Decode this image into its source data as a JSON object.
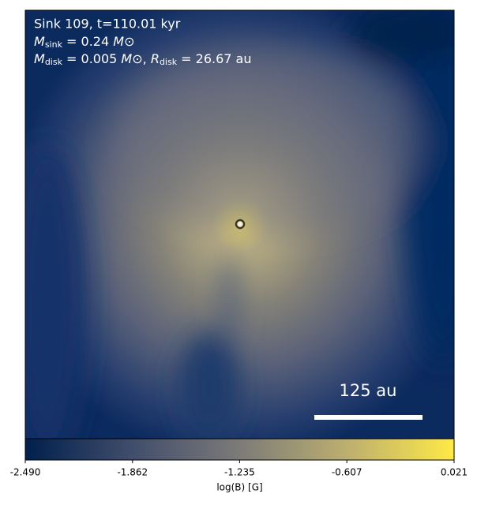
{
  "chart_data": {
    "type": "colormap",
    "annotations": {
      "line1": "Sink 109, t=110.01 kyr",
      "line2": [
        "M",
        "sink",
        " = 0.24 ",
        "M",
        "⊙"
      ],
      "line3": [
        "M",
        "disk",
        " = 0.005 ",
        "M",
        "⊙",
        ", ",
        "R",
        "disk",
        " = 26.67 au"
      ],
      "scale_bar": "125 au"
    },
    "colorbar": {
      "label": "log(B) [G]",
      "xlim": [
        -2.49,
        0.021
      ],
      "xticks": [
        {
          "value": -2.49,
          "label": "-2.490"
        },
        {
          "value": -1.862,
          "label": "-1.862"
        },
        {
          "value": -1.235,
          "label": "-1.235"
        },
        {
          "value": -0.607,
          "label": "-0.607"
        },
        {
          "value": 0.021,
          "label": "0.021"
        }
      ],
      "colormap": "cividis"
    }
  }
}
